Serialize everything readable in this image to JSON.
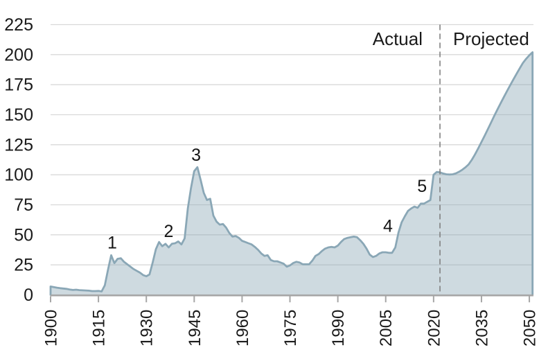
{
  "region_labels": {
    "actual": "Actual",
    "projected": "Projected"
  },
  "chart_data": {
    "type": "area",
    "x_start_year": 1900,
    "x_step_years": 1,
    "x_range": [
      1900,
      2051
    ],
    "y_range": [
      0,
      225
    ],
    "x_ticks": [
      1900,
      1915,
      1930,
      1945,
      1960,
      1975,
      1990,
      2005,
      2020,
      2035,
      2050
    ],
    "y_ticks": [
      0,
      25,
      50,
      75,
      100,
      125,
      150,
      175,
      200,
      225
    ],
    "grid": "horizontal",
    "legend": "none",
    "divider_year": 2022,
    "divider_style": "dashed",
    "values": [
      7.0,
      6.5,
      6.0,
      5.6,
      5.3,
      5.0,
      4.5,
      4.1,
      4.3,
      4.0,
      3.8,
      3.7,
      3.5,
      3.2,
      3.2,
      3.3,
      2.9,
      8.0,
      21.0,
      33.0,
      26.5,
      30.0,
      30.5,
      27.5,
      25.5,
      23.5,
      21.5,
      20.0,
      18.5,
      16.5,
      15.5,
      17.0,
      27.0,
      38.0,
      44.0,
      40.5,
      42.5,
      39.5,
      42.5,
      43.0,
      44.5,
      42.0,
      47.0,
      72.0,
      89.0,
      103.0,
      106.3,
      96.0,
      85.0,
      79.0,
      80.0,
      66.0,
      61.0,
      58.5,
      59.0,
      56.0,
      51.5,
      48.5,
      49.0,
      47.5,
      45.0,
      44.0,
      43.0,
      42.0,
      40.0,
      37.5,
      34.5,
      32.5,
      33.0,
      29.0,
      28.0,
      28.0,
      27.0,
      26.0,
      23.5,
      24.5,
      26.5,
      27.5,
      27.0,
      25.5,
      25.5,
      25.5,
      28.5,
      32.5,
      34.0,
      36.5,
      38.5,
      39.5,
      40.0,
      39.5,
      41.0,
      44.0,
      46.5,
      47.5,
      48.0,
      48.5,
      48.0,
      45.5,
      42.5,
      38.5,
      33.5,
      31.5,
      32.5,
      34.5,
      35.5,
      35.5,
      35.0,
      35.0,
      39.5,
      52.0,
      60.5,
      65.5,
      70.0,
      72.0,
      73.5,
      72.5,
      76.0,
      76.0,
      77.5,
      79.0,
      100.0,
      102.3,
      102.0,
      101.0,
      100.4,
      100.2,
      100.4,
      101.2,
      102.5,
      104.2,
      106.2,
      108.7,
      112.5,
      117.0,
      122.0,
      127.2,
      132.5,
      138.0,
      143.5,
      149.0,
      154.3,
      159.5,
      164.6,
      169.6,
      174.5,
      179.3,
      184.0,
      188.6,
      193.1,
      196.5,
      199.5,
      202.0
    ],
    "annotations": [
      {
        "label": "1",
        "year": 1919.3,
        "value": 43.5
      },
      {
        "label": "2",
        "year": 1937.0,
        "value": 53.0
      },
      {
        "label": "3",
        "year": 1945.6,
        "value": 116.5
      },
      {
        "label": "4",
        "year": 2005.7,
        "value": 57.5
      },
      {
        "label": "5",
        "year": 2016.4,
        "value": 90.5
      }
    ],
    "colors": {
      "line": "#8AA7B6",
      "fill": "rgba(138,167,182,0.42)",
      "gridline": "#D9D9D9",
      "axis": "#A6A6A6",
      "divider": "#7F7F7F",
      "text": "#1A1A1A"
    }
  }
}
